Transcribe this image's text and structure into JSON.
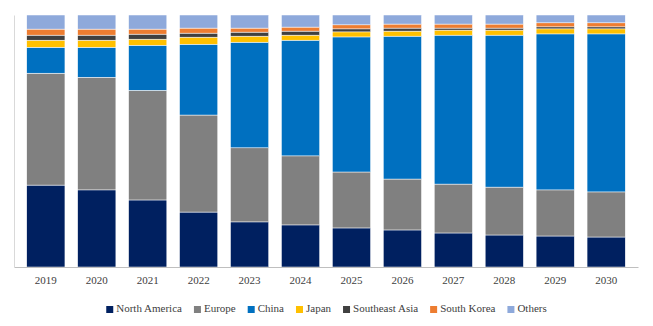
{
  "chart_data": {
    "type": "bar",
    "stacked": true,
    "tick_labels": "x",
    "legend": "bottom",
    "categories": [
      "2019",
      "2020",
      "2021",
      "2022",
      "2023",
      "2024",
      "2025",
      "2026",
      "2027",
      "2028",
      "2029",
      "2030"
    ],
    "ylim": [
      0,
      100
    ],
    "series": [
      {
        "name": "North America",
        "color": "#002060",
        "values": [
          32.5,
          30.6,
          26.6,
          21.8,
          17.9,
          16.7,
          15.5,
          14.7,
          13.5,
          12.7,
          12.3,
          11.9
        ]
      },
      {
        "name": "Europe",
        "color": "#808080",
        "values": [
          44.4,
          44.7,
          43.5,
          38.5,
          29.4,
          27.4,
          22.2,
          20.2,
          19.4,
          19.0,
          18.3,
          17.9
        ]
      },
      {
        "name": "China",
        "color": "#0070c0",
        "values": [
          10.3,
          11.9,
          17.9,
          28.1,
          41.9,
          45.9,
          53.6,
          56.7,
          59.1,
          60.3,
          61.9,
          62.7
        ]
      },
      {
        "name": "Japan",
        "color": "#ffc000",
        "values": [
          2.8,
          2.8,
          2.4,
          2.8,
          2.4,
          2.0,
          2.0,
          2.0,
          2.0,
          2.0,
          2.0,
          2.0
        ]
      },
      {
        "name": "Southeast Asia",
        "color": "#404040",
        "values": [
          2.0,
          2.0,
          2.0,
          1.6,
          1.6,
          1.6,
          1.2,
          1.2,
          0.8,
          0.8,
          0.8,
          0.8
        ]
      },
      {
        "name": "South Korea",
        "color": "#ed7d31",
        "values": [
          2.4,
          2.4,
          2.0,
          2.0,
          1.6,
          1.6,
          1.6,
          1.6,
          1.6,
          1.6,
          1.6,
          1.6
        ]
      },
      {
        "name": "Others",
        "color": "#8ea9db",
        "values": [
          5.6,
          5.6,
          5.6,
          5.2,
          5.2,
          4.8,
          3.9,
          3.6,
          3.6,
          3.6,
          3.1,
          3.1
        ]
      }
    ]
  }
}
